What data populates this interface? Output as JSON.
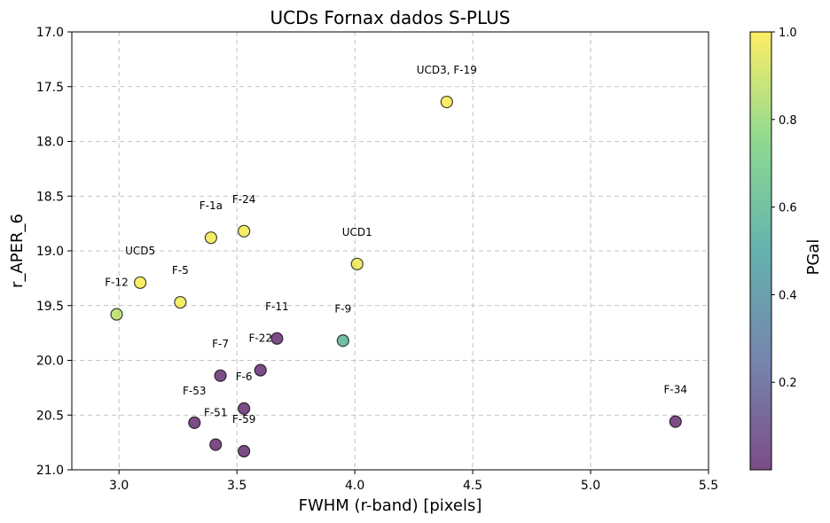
{
  "chart_data": {
    "type": "scatter",
    "title": "UCDs Fornax dados S-PLUS",
    "xlabel": "FWHM (r-band) [pixels]",
    "ylabel": "r_APER_6",
    "xlim": [
      2.8,
      5.5
    ],
    "ylim": [
      21.0,
      17.0
    ],
    "y_inverted": true,
    "grid": true,
    "xticks": [
      3.0,
      3.5,
      4.0,
      4.5,
      5.0,
      5.5
    ],
    "xtick_labels": [
      "3.0",
      "3.5",
      "4.0",
      "4.5",
      "5.0",
      "5.5"
    ],
    "yticks": [
      17.0,
      17.5,
      18.0,
      18.5,
      19.0,
      19.5,
      20.0,
      20.5,
      21.0
    ],
    "ytick_labels": [
      "17.0",
      "17.5",
      "18.0",
      "18.5",
      "19.0",
      "19.5",
      "20.0",
      "20.5",
      "21.0"
    ],
    "colorbar": {
      "label": "PGal",
      "range": [
        0.0,
        1.0
      ],
      "ticks": [
        0.2,
        0.4,
        0.6,
        0.8,
        1.0
      ],
      "tick_labels": [
        "0.2",
        "0.4",
        "0.6",
        "0.8",
        "1.0"
      ],
      "colormap": "viridis",
      "alpha": 0.7
    },
    "points": [
      {
        "label": "UCD3, F-19",
        "x": 4.39,
        "y": 17.64,
        "pgal": 0.99
      },
      {
        "label": "F-1a",
        "x": 3.39,
        "y": 18.88,
        "pgal": 0.98
      },
      {
        "label": "F-24",
        "x": 3.53,
        "y": 18.82,
        "pgal": 0.98
      },
      {
        "label": "UCD1",
        "x": 4.01,
        "y": 19.12,
        "pgal": 0.97
      },
      {
        "label": "UCD5",
        "x": 3.09,
        "y": 19.29,
        "pgal": 1.0
      },
      {
        "label": "F-5",
        "x": 3.26,
        "y": 19.47,
        "pgal": 0.98
      },
      {
        "label": "F-12",
        "x": 2.99,
        "y": 19.58,
        "pgal": 0.87
      },
      {
        "label": "F-11",
        "x": 3.67,
        "y": 19.8,
        "pgal": 0.0
      },
      {
        "label": "F-9",
        "x": 3.95,
        "y": 19.82,
        "pgal": 0.58
      },
      {
        "label": "F-7",
        "x": 3.43,
        "y": 20.14,
        "pgal": 0.0
      },
      {
        "label": "F-22",
        "x": 3.6,
        "y": 20.09,
        "pgal": 0.0
      },
      {
        "label": "F-6",
        "x": 3.53,
        "y": 20.44,
        "pgal": 0.0
      },
      {
        "label": "F-53",
        "x": 3.32,
        "y": 20.57,
        "pgal": 0.0
      },
      {
        "label": "F-51",
        "x": 3.41,
        "y": 20.77,
        "pgal": 0.0
      },
      {
        "label": "F-59",
        "x": 3.53,
        "y": 20.83,
        "pgal": 0.0
      },
      {
        "label": "F-34",
        "x": 5.36,
        "y": 20.56,
        "pgal": 0.0
      }
    ]
  }
}
